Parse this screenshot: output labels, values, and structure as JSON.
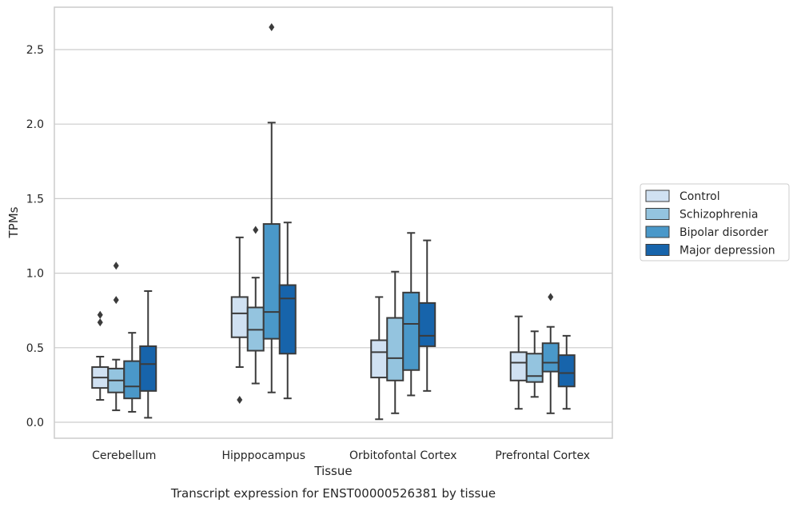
{
  "chart_data": {
    "type": "box",
    "caption": "Transcript expression for ENST00000526381 by tissue",
    "xlabel": "Tissue",
    "ylabel": "TPMs",
    "ylim": [
      -0.1,
      2.78
    ],
    "yticks": [
      0.0,
      0.5,
      1.0,
      1.5,
      2.0,
      2.5
    ],
    "grid": "horizontal",
    "legend_position": "right",
    "categories": [
      "Cerebellum",
      "Hipppocampus",
      "Orbitofontal Cortex",
      "Prefrontal Cortex"
    ],
    "series": [
      {
        "name": "Control",
        "color": "#d0e1f2",
        "boxes": [
          {
            "whisker_low": 0.15,
            "q1": 0.23,
            "median": 0.3,
            "q3": 0.37,
            "whisker_high": 0.44,
            "outliers": [
              0.67,
              0.72
            ]
          },
          {
            "whisker_low": 0.37,
            "q1": 0.57,
            "median": 0.73,
            "q3": 0.84,
            "whisker_high": 1.24,
            "outliers": [
              0.15
            ]
          },
          {
            "whisker_low": 0.02,
            "q1": 0.3,
            "median": 0.47,
            "q3": 0.55,
            "whisker_high": 0.84,
            "outliers": []
          },
          {
            "whisker_low": 0.09,
            "q1": 0.28,
            "median": 0.4,
            "q3": 0.47,
            "whisker_high": 0.71,
            "outliers": []
          }
        ]
      },
      {
        "name": "Schizophrenia",
        "color": "#94c4df",
        "boxes": [
          {
            "whisker_low": 0.08,
            "q1": 0.2,
            "median": 0.28,
            "q3": 0.36,
            "whisker_high": 0.42,
            "outliers": [
              0.82,
              1.05
            ]
          },
          {
            "whisker_low": 0.26,
            "q1": 0.48,
            "median": 0.62,
            "q3": 0.77,
            "whisker_high": 0.97,
            "outliers": [
              1.29
            ]
          },
          {
            "whisker_low": 0.06,
            "q1": 0.28,
            "median": 0.43,
            "q3": 0.7,
            "whisker_high": 1.01,
            "outliers": []
          },
          {
            "whisker_low": 0.17,
            "q1": 0.27,
            "median": 0.31,
            "q3": 0.46,
            "whisker_high": 0.61,
            "outliers": []
          }
        ]
      },
      {
        "name": "Bipolar disorder",
        "color": "#4a98c9",
        "boxes": [
          {
            "whisker_low": 0.07,
            "q1": 0.16,
            "median": 0.24,
            "q3": 0.41,
            "whisker_high": 0.6,
            "outliers": []
          },
          {
            "whisker_low": 0.2,
            "q1": 0.56,
            "median": 0.74,
            "q3": 1.33,
            "whisker_high": 2.01,
            "outliers": [
              2.65
            ]
          },
          {
            "whisker_low": 0.18,
            "q1": 0.35,
            "median": 0.66,
            "q3": 0.87,
            "whisker_high": 1.27,
            "outliers": []
          },
          {
            "whisker_low": 0.06,
            "q1": 0.34,
            "median": 0.4,
            "q3": 0.53,
            "whisker_high": 0.64,
            "outliers": [
              0.84
            ]
          }
        ]
      },
      {
        "name": "Major depression",
        "color": "#1764ab",
        "boxes": [
          {
            "whisker_low": 0.03,
            "q1": 0.21,
            "median": 0.39,
            "q3": 0.51,
            "whisker_high": 0.88,
            "outliers": []
          },
          {
            "whisker_low": 0.16,
            "q1": 0.46,
            "median": 0.83,
            "q3": 0.92,
            "whisker_high": 1.34,
            "outliers": []
          },
          {
            "whisker_low": 0.21,
            "q1": 0.51,
            "median": 0.58,
            "q3": 0.8,
            "whisker_high": 1.22,
            "outliers": []
          },
          {
            "whisker_low": 0.09,
            "q1": 0.24,
            "median": 0.33,
            "q3": 0.45,
            "whisker_high": 0.58,
            "outliers": []
          }
        ]
      }
    ]
  }
}
